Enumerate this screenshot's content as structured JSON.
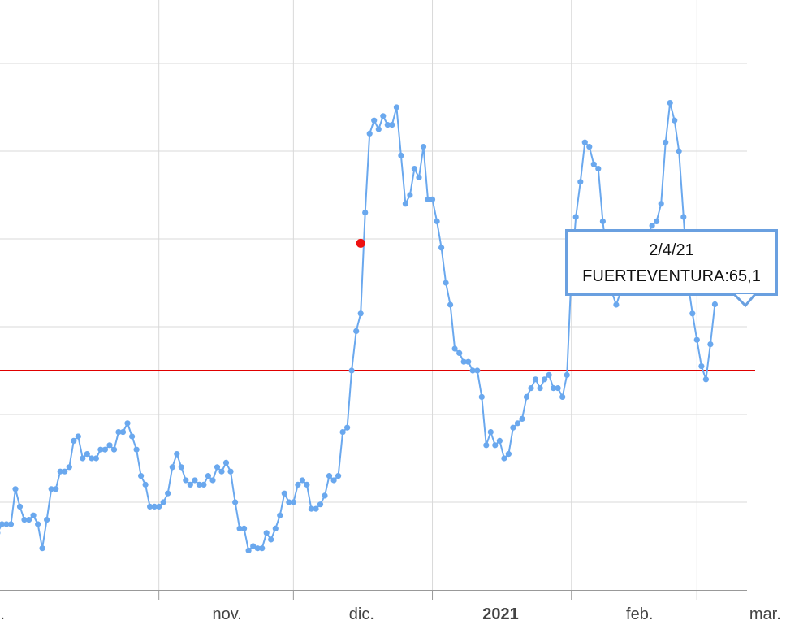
{
  "colors": {
    "series": "#6aa8ee",
    "threshold": "#e00000",
    "marker": "#ee1111",
    "tooltip_border": "#6aa0e0",
    "grid": "#d9d9d9"
  },
  "tooltip": {
    "date": "2/4/21",
    "series_label": "FUERTEVENTURA:65,1"
  },
  "chart_data": {
    "type": "line",
    "x_tick_labels": [
      {
        "label": "…",
        "date": "2020-09-26"
      },
      {
        "label": "nov.",
        "date": "2020-11-01"
      },
      {
        "label": "dic.",
        "date": "2020-12-01"
      },
      {
        "label": "2021",
        "date": "2021-01-01",
        "bold": true
      },
      {
        "label": "feb.",
        "date": "2021-02-01"
      },
      {
        "label": "mar.",
        "date": "2021-03-01"
      }
    ],
    "x_range": [
      "2020-09-26",
      "2021-04-05"
    ],
    "y_range": [
      0,
      130
    ],
    "y_gridlines": [
      20,
      40,
      60,
      80,
      100,
      120
    ],
    "y_tick_labels_visible": false,
    "grid": true,
    "threshold_line": 50,
    "highlight_marker": {
      "date": "2020-12-16",
      "value": 79
    },
    "series": [
      {
        "x_start": "2020-09-26",
        "x_step_days": 1,
        "values": [
          13,
          15,
          15,
          15,
          23,
          19,
          16,
          16,
          17,
          15,
          9.5,
          16,
          23,
          23,
          27,
          27,
          28,
          34,
          35,
          30,
          31,
          30,
          30,
          32,
          32,
          33,
          32,
          36,
          36,
          38,
          35,
          32,
          26,
          24,
          19,
          19,
          19,
          20,
          22,
          28,
          31,
          28,
          25,
          24,
          25,
          24,
          24,
          26,
          25,
          28,
          27,
          29,
          27,
          20,
          14,
          14,
          9,
          10,
          9.5,
          9.5,
          13,
          11.5,
          14,
          17,
          22,
          20,
          20,
          24,
          25,
          24,
          18.5,
          18.5,
          19.5,
          21.5,
          26,
          25,
          26,
          36,
          37,
          50,
          59,
          63,
          86,
          104,
          107,
          105,
          108,
          106,
          106,
          110,
          99,
          88,
          90,
          96,
          94,
          101,
          89,
          89,
          84,
          78,
          70,
          65,
          55,
          54,
          52,
          52,
          50,
          50,
          44,
          33,
          36,
          33,
          34,
          30,
          31,
          37,
          38,
          39,
          44,
          46,
          48,
          46,
          48,
          49,
          46,
          46,
          44,
          49,
          72,
          85,
          93,
          102,
          101,
          97,
          96,
          84,
          75,
          68,
          65,
          68,
          68,
          76,
          79,
          79,
          75,
          81,
          83,
          84,
          88,
          102,
          111,
          107,
          100,
          85,
          70,
          63,
          57,
          51,
          48,
          56,
          65.1
        ]
      }
    ]
  }
}
